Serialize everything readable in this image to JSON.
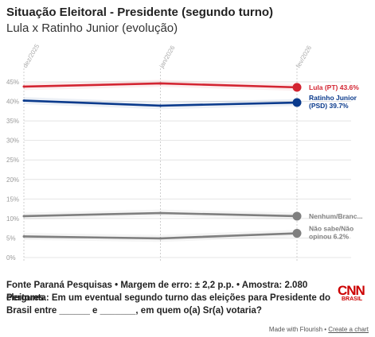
{
  "header": {
    "title": "Situação Eleitoral - Presidente (segundo turno)",
    "subtitle": "Lula x Ratinho Junior (evolução)"
  },
  "chart_data": {
    "type": "line",
    "x": [
      "dez/2025",
      "jan/2026",
      "fev/2026"
    ],
    "ylim": [
      0,
      45
    ],
    "yticks": [
      "0%",
      "5%",
      "10%",
      "15%",
      "20%",
      "25%",
      "30%",
      "35%",
      "40%",
      "45%"
    ],
    "grid": true,
    "series": [
      {
        "name": "Lula (PT)",
        "values": [
          43.8,
          44.6,
          43.6
        ],
        "color": "#d32431",
        "label_lines": [
          "Lula (PT) 43.6%"
        ]
      },
      {
        "name": "Ratinho Junior (PSD)",
        "values": [
          40.2,
          38.9,
          39.7
        ],
        "color": "#0a3a8c",
        "label_lines": [
          "Ratinho Junior",
          "(PSD) 39.7%"
        ]
      },
      {
        "name": "Nenhum/Branco/Nulo",
        "values": [
          10.6,
          11.4,
          10.6
        ],
        "color": "#7f7f7f",
        "label_lines": [
          "Nenhum/Branc..."
        ]
      },
      {
        "name": "Não sabe/Não opinou",
        "values": [
          5.4,
          4.9,
          6.2
        ],
        "color": "#7f7f7f",
        "label_lines": [
          "Não sabe/Não",
          "opinou 6.2%"
        ]
      }
    ]
  },
  "footer": {
    "source": "Fonte Paraná Pesquisas • Margem de erro: ± 2,2 p.p. • Amostra: 2.080 eleitores",
    "question": "Pergunta: Em um eventual segundo turno das eleições para Presidente do Brasil entre ______ e _______, em quem o(a) Sr(a) votaria?",
    "logo_text": "CNN",
    "logo_sub": "BRASIL",
    "credit_prefix": "Made with Flourish • ",
    "credit_link": "Create a chart"
  }
}
